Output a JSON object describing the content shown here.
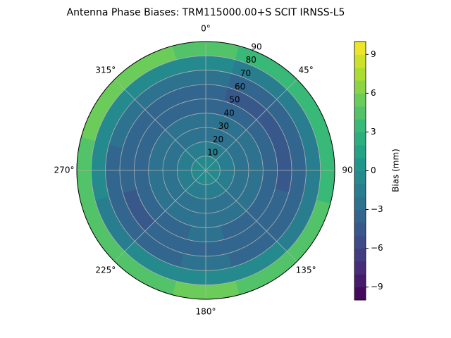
{
  "chart_data": {
    "type": "polar_contour",
    "title": "Antenna Phase Biases: TRM115000.00+S  SCIT IRNSS-L5",
    "azimuths": [
      0,
      30,
      60,
      90,
      120,
      150,
      180,
      210,
      240,
      270,
      300,
      330
    ],
    "r_edges": [
      0,
      10,
      20,
      30,
      40,
      50,
      60,
      70,
      80,
      90
    ],
    "values": [
      [
        -1,
        -1,
        -1,
        -1,
        -1,
        -1,
        -1,
        -1,
        -1,
        -1,
        -1,
        -1
      ],
      [
        -1.5,
        -1.5,
        -1.5,
        -1.5,
        -1.5,
        -1.5,
        -1.5,
        -1.5,
        -1.5,
        -1.5,
        -1.5,
        -1.5
      ],
      [
        -2.5,
        -2.5,
        -2.5,
        -2.5,
        -2.5,
        -2.5,
        -2.5,
        -2.5,
        -2.5,
        -2.5,
        -2.5,
        -2.5
      ],
      [
        -3,
        -3,
        -3,
        -3,
        -3,
        -3,
        -3,
        -3,
        -3,
        -3,
        -3,
        -3
      ],
      [
        -3.5,
        -3.5,
        -4,
        -4,
        -4,
        -3.5,
        -3,
        -3.5,
        -3.5,
        -3.5,
        -3.5,
        -3.5
      ],
      [
        -4,
        -4.5,
        -4.5,
        -4.5,
        -4,
        -4,
        -3.5,
        -4,
        -4.5,
        -4,
        -4,
        -3.5
      ],
      [
        -3,
        -4,
        -4,
        -4,
        -3.5,
        -3.5,
        -3,
        -3.5,
        -4,
        -3.5,
        -3,
        -3
      ],
      [
        -1,
        -1.5,
        -2,
        -2,
        -1.5,
        -1,
        -0.5,
        -1,
        -1.5,
        -1,
        -0.5,
        -0.5
      ],
      [
        4,
        3.5,
        3,
        3.5,
        4,
        4.5,
        5,
        4.5,
        4,
        4.5,
        5,
        5
      ]
    ],
    "rlim": [
      0,
      90
    ],
    "rticks": [
      10,
      20,
      30,
      40,
      50,
      60,
      70,
      80,
      90
    ],
    "thetaticks": [
      {
        "value": 0,
        "label": "0°"
      },
      {
        "value": 45,
        "label": "45°"
      },
      {
        "value": 90,
        "label": "90"
      },
      {
        "value": 135,
        "label": "135°"
      },
      {
        "value": 180,
        "label": "180°"
      },
      {
        "value": 225,
        "label": "225°"
      },
      {
        "value": 270,
        "label": "270°"
      },
      {
        "value": 315,
        "label": "315°"
      }
    ],
    "colorbar": {
      "label": "Bias (mm)",
      "clim": [
        -10,
        10
      ],
      "ticks": [
        {
          "value": -9,
          "label": "−9"
        },
        {
          "value": -6,
          "label": "−6"
        },
        {
          "value": -3,
          "label": "−3"
        },
        0,
        3,
        6,
        9
      ]
    },
    "colormap": "viridis",
    "grid": true
  }
}
